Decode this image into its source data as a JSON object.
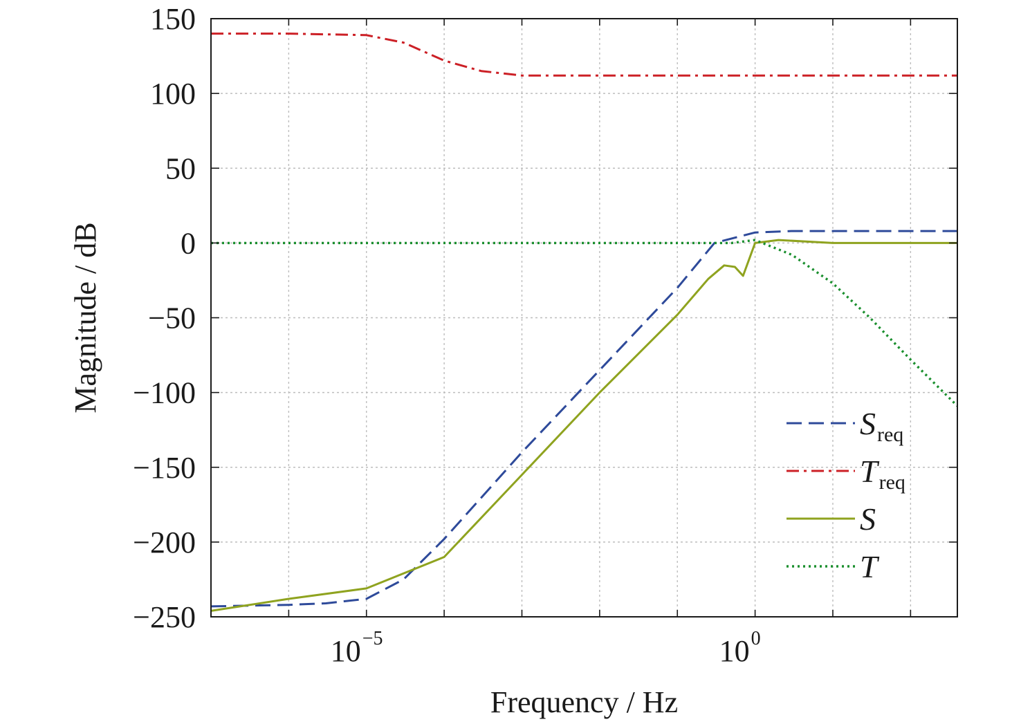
{
  "chart_data": {
    "type": "line",
    "title": "",
    "xlabel": "Frequency / Hz",
    "ylabel": "Magnitude / dB",
    "x_scale": "log",
    "xlim": [
      1e-07,
      400
    ],
    "ylim": [
      -250,
      150
    ],
    "x_ticks": [
      {
        "value": 1e-05,
        "base": "10",
        "exp": "−5"
      },
      {
        "value": 1,
        "base": "10",
        "exp": "0"
      }
    ],
    "y_ticks": [
      {
        "value": 150,
        "label": "150"
      },
      {
        "value": 100,
        "label": "100"
      },
      {
        "value": 50,
        "label": "50"
      },
      {
        "value": 0,
        "label": "0"
      },
      {
        "value": -50,
        "label": "−50"
      },
      {
        "value": -100,
        "label": "−100"
      },
      {
        "value": -150,
        "label": "−150"
      },
      {
        "value": -200,
        "label": "−200"
      },
      {
        "value": -250,
        "label": "−250"
      }
    ],
    "grid": true,
    "legend_position": "bottom-right",
    "series": [
      {
        "name": "S",
        "subscript": "req",
        "color": "#2e4a9a",
        "style": "dashed",
        "x": [
          1e-07,
          1e-06,
          3e-06,
          1e-05,
          3e-05,
          0.0001,
          0.001,
          0.01,
          0.1,
          0.3,
          1,
          3,
          10,
          100,
          400
        ],
        "y": [
          -243,
          -242,
          -241,
          -238,
          -225,
          -198,
          -140,
          -85,
          -30,
          0,
          7,
          8,
          8,
          8,
          8
        ]
      },
      {
        "name": "T",
        "subscript": "req",
        "color": "#cc2026",
        "style": "dashdot",
        "x": [
          1e-07,
          1e-06,
          1e-05,
          3e-05,
          0.0001,
          0.0003,
          0.001,
          0.01,
          1,
          100,
          400
        ],
        "y": [
          140,
          140,
          139,
          134,
          122,
          115,
          112,
          112,
          112,
          112,
          112
        ]
      },
      {
        "name": "S",
        "subscript": "",
        "color": "#8fa31f",
        "style": "solid",
        "x": [
          1e-07,
          1e-06,
          1e-05,
          0.0001,
          0.001,
          0.01,
          0.1,
          0.25,
          0.4,
          0.55,
          0.7,
          1,
          2,
          10,
          400
        ],
        "y": [
          -246,
          -238,
          -231,
          -210,
          -155,
          -100,
          -48,
          -24,
          -15,
          -16,
          -22,
          0,
          2,
          0,
          0
        ]
      },
      {
        "name": "T",
        "subscript": "",
        "color": "#1a8f2e",
        "style": "dotted",
        "x": [
          1e-07,
          0.001,
          0.1,
          0.5,
          1,
          3,
          10,
          30,
          100,
          400
        ],
        "y": [
          0,
          0,
          0,
          0,
          2,
          -8,
          -27,
          -50,
          -78,
          -109
        ]
      }
    ]
  }
}
